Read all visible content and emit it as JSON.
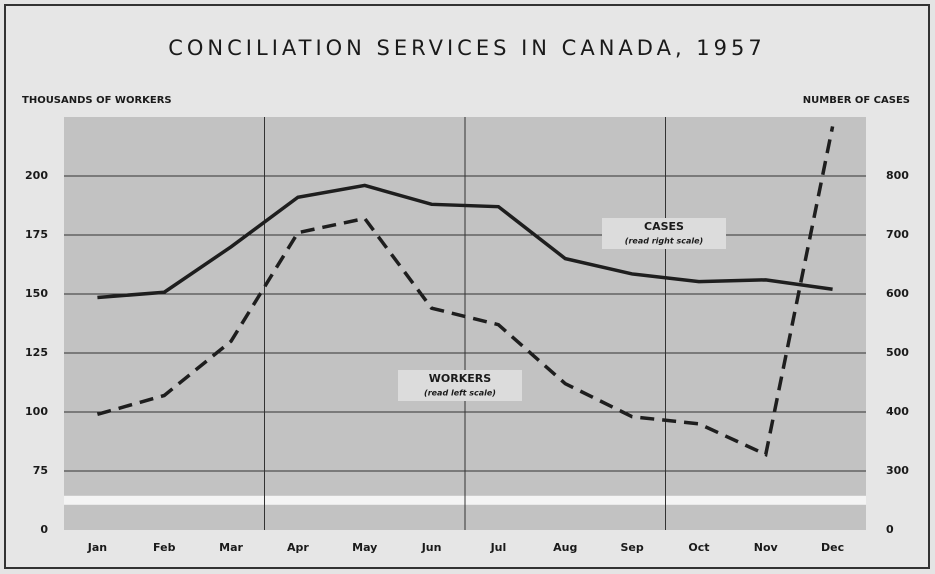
{
  "chart_data": {
    "type": "line",
    "title": "CONCILIATION SERVICES IN CANADA, 1957",
    "y_label": "THOUSANDS OF WORKERS",
    "y2_label": "NUMBER OF CASES",
    "categories": [
      "Jan",
      "Feb",
      "Mar",
      "Apr",
      "May",
      "Jun",
      "Jul",
      "Aug",
      "Sep",
      "Oct",
      "Nov",
      "Dec"
    ],
    "series": [
      {
        "name": "CASES",
        "note": "(read right scale)",
        "axis": "y2",
        "color": "#1e1e1e",
        "dash": "solid",
        "values": [
          594,
          603,
          680,
          764,
          784,
          752,
          748,
          660,
          634,
          621,
          624,
          608
        ]
      },
      {
        "name": "WORKERS",
        "note": "(read left scale)",
        "axis": "y",
        "color": "#1e1e1e",
        "dash": "dashed",
        "values": [
          99,
          107,
          130,
          176,
          182,
          144,
          137,
          112,
          98,
          95,
          82,
          221
        ]
      }
    ],
    "ylim": [
      0,
      225
    ],
    "yticks": [
      0,
      75,
      100,
      125,
      150,
      175,
      200
    ],
    "y2lim": [
      0,
      900
    ],
    "y2ticks": [
      0,
      300,
      400,
      500,
      600,
      700,
      800
    ],
    "axis_break": true,
    "grid": true
  }
}
